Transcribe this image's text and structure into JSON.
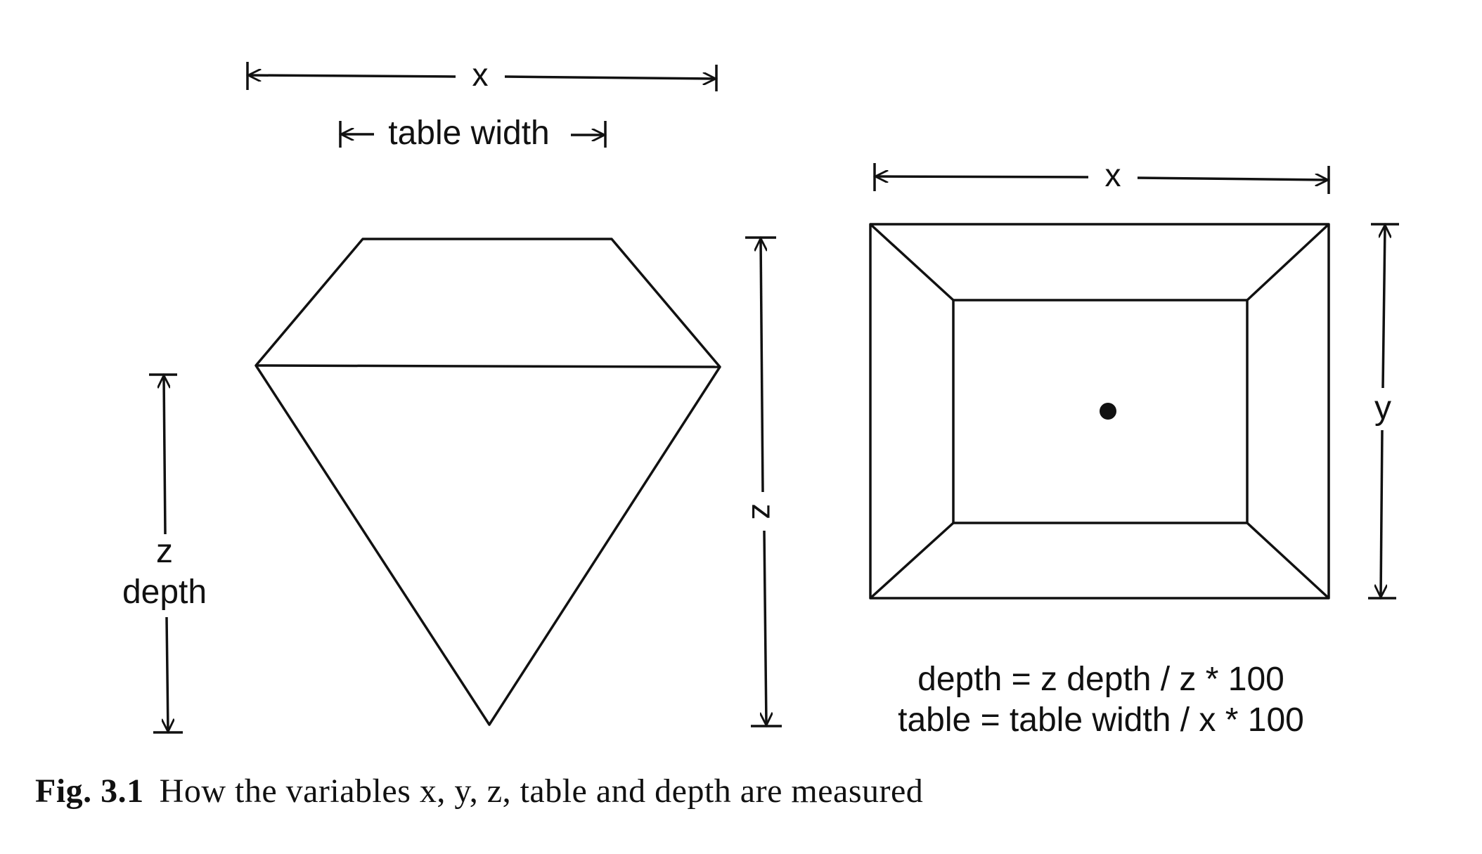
{
  "diagram": {
    "side_view": {
      "x_label": "x",
      "table_width_label": "table width",
      "z_label": "z",
      "z_depth_label_line1": "z",
      "z_depth_label_line2": "depth"
    },
    "top_view": {
      "x_label": "x",
      "y_label": "y"
    },
    "formulas": {
      "depth": "depth = z depth / z * 100",
      "table": "table = table width / x * 100"
    },
    "colors": {
      "stroke": "#111111",
      "background": "#ffffff"
    }
  },
  "caption": {
    "number": "Fig. 3.1",
    "text": "How the variables x, y, z, table and depth are measured"
  }
}
